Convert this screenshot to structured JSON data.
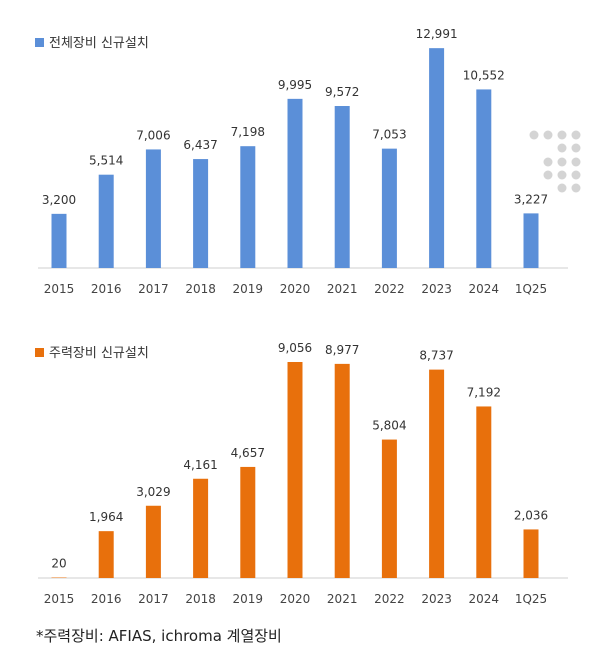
{
  "colors": {
    "blue": "#5b8fd8",
    "orange": "#e8700c",
    "axis": "#cfcfcf",
    "dots": "#d4d4d4"
  },
  "chart_data": [
    {
      "type": "bar",
      "categories": [
        "2015",
        "2016",
        "2017",
        "2018",
        "2019",
        "2020",
        "2021",
        "2022",
        "2023",
        "2024",
        "1Q25"
      ],
      "series": [
        {
          "name": "전체장비 신규설치",
          "values": [
            3200,
            5514,
            7006,
            6437,
            7198,
            9995,
            9572,
            7053,
            12991,
            10552,
            3227
          ],
          "labels": [
            "3,200",
            "5,514",
            "7,006",
            "6,437",
            "7,198",
            "9,995",
            "9,572",
            "7,053",
            "12,991",
            "10,552",
            "3,227"
          ]
        }
      ],
      "legend": "top-left",
      "ylim": [
        0,
        13000
      ],
      "grid": false
    },
    {
      "type": "bar",
      "categories": [
        "2015",
        "2016",
        "2017",
        "2018",
        "2019",
        "2020",
        "2021",
        "2022",
        "2023",
        "2024",
        "1Q25"
      ],
      "series": [
        {
          "name": "주력장비 신규설치",
          "values": [
            20,
            1964,
            3029,
            4161,
            4657,
            9056,
            8977,
            5804,
            8737,
            7192,
            2036
          ],
          "labels": [
            "20",
            "1,964",
            "3,029",
            "4,161",
            "4,657",
            "9,056",
            "8,977",
            "5,804",
            "8,737",
            "7,192",
            "2,036"
          ]
        }
      ],
      "legend": "top-left",
      "ylim": [
        0,
        9056
      ],
      "grid": false
    }
  ],
  "footnote": "*주력장비: AFIAS, ichroma 계열장비"
}
